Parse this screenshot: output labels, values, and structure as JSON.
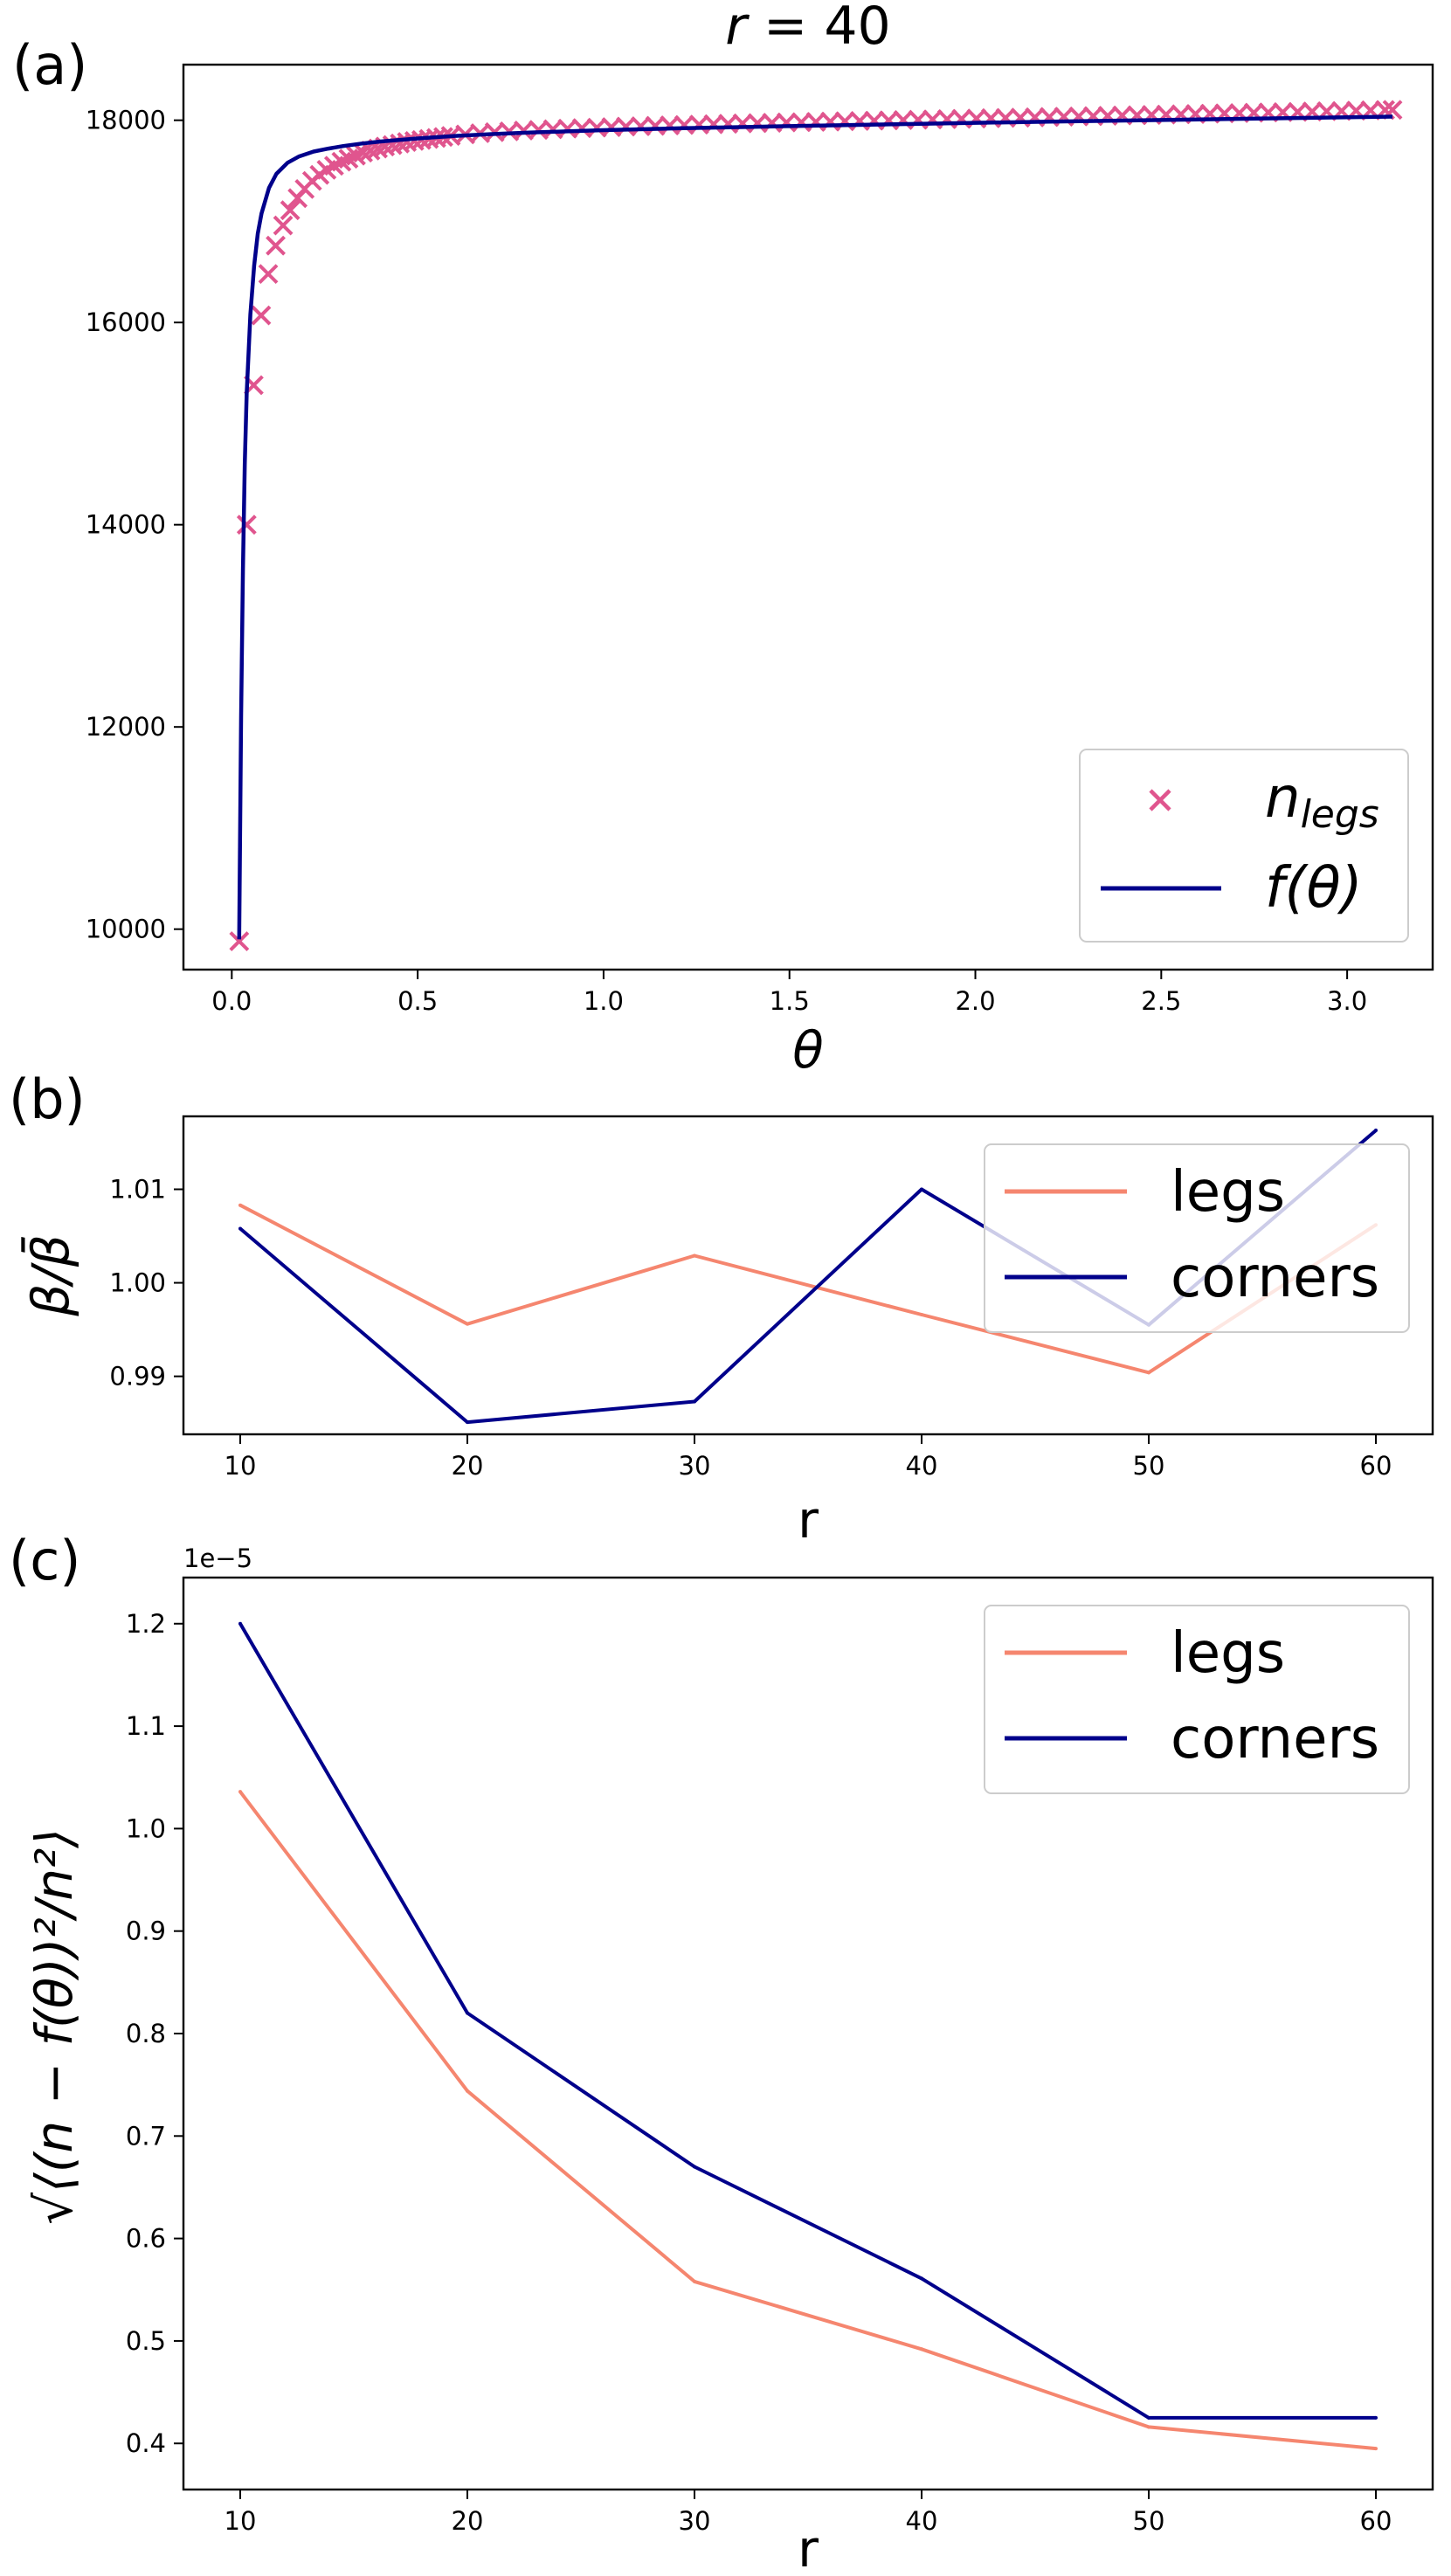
{
  "chart_data": [
    {
      "panel_label": "(a)",
      "type": "scatter",
      "title_var": "r",
      "title_eq": " = ",
      "title_val": "40",
      "xlabel": "θ",
      "ylabel": "",
      "xlim": [
        -0.13,
        3.23
      ],
      "ylim": [
        9600,
        18550
      ],
      "xticks": [
        0.0,
        0.5,
        1.0,
        1.5,
        2.0,
        2.5,
        3.0
      ],
      "xtick_labels": [
        "0.0",
        "0.5",
        "1.0",
        "1.5",
        "2.0",
        "2.5",
        "3.0"
      ],
      "yticks": [
        10000,
        12000,
        14000,
        16000,
        18000
      ],
      "ytick_labels": [
        "10000",
        "12000",
        "14000",
        "16000",
        "18000"
      ],
      "legend_position": "lower-right",
      "series": [
        {
          "name_main": "n",
          "name_sub": "legs",
          "kind": "marker-x",
          "color": "#e0558e",
          "x": [
            0.02,
            0.04,
            0.059,
            0.079,
            0.098,
            0.118,
            0.138,
            0.157,
            0.177,
            0.196,
            0.216,
            0.236,
            0.255,
            0.275,
            0.295,
            0.314,
            0.334,
            0.353,
            0.373,
            0.393,
            0.412,
            0.432,
            0.452,
            0.471,
            0.491,
            0.51,
            0.53,
            0.55,
            0.569,
            0.589,
            0.628,
            0.668,
            0.707,
            0.746,
            0.785,
            0.825,
            0.864,
            0.903,
            0.942,
            0.982,
            1.021,
            1.06,
            1.1,
            1.139,
            1.178,
            1.217,
            1.257,
            1.296,
            1.335,
            1.374,
            1.414,
            1.453,
            1.492,
            1.532,
            1.571,
            1.61,
            1.649,
            1.689,
            1.728,
            1.767,
            1.806,
            1.846,
            1.885,
            1.924,
            1.963,
            2.003,
            2.042,
            2.081,
            2.121,
            2.16,
            2.199,
            2.238,
            2.278,
            2.317,
            2.356,
            2.395,
            2.435,
            2.474,
            2.513,
            2.553,
            2.592,
            2.631,
            2.67,
            2.71,
            2.749,
            2.788,
            2.827,
            2.867,
            2.906,
            2.945,
            2.985,
            3.024,
            3.063,
            3.102,
            3.122
          ],
          "y": [
            9880,
            14000,
            15380,
            16070,
            16480,
            16760,
            16960,
            17110,
            17230,
            17320,
            17400,
            17460,
            17510,
            17550,
            17590,
            17620,
            17650,
            17680,
            17700,
            17720,
            17740,
            17755,
            17770,
            17785,
            17795,
            17805,
            17815,
            17825,
            17835,
            17845,
            17860,
            17872,
            17882,
            17890,
            17898,
            17905,
            17911,
            17917,
            17922,
            17927,
            17932,
            17937,
            17941,
            17945,
            17949,
            17953,
            17957,
            17961,
            17965,
            17969,
            17972,
            17975,
            17978,
            17981,
            17984,
            17987,
            17990,
            17993,
            17996,
            17999,
            18002,
            18005,
            18008,
            18011,
            18014,
            18017,
            18020,
            18023,
            18026,
            18029,
            18032,
            18035,
            18038,
            18041,
            18044,
            18047,
            18050,
            18053,
            18056,
            18059,
            18062,
            18065,
            18068,
            18071,
            18074,
            18077,
            18080,
            18083,
            18086,
            18089,
            18092,
            18095,
            18098,
            18101,
            18103
          ]
        },
        {
          "name_main": "f",
          "name_sub": "",
          "name_rest": "(θ)",
          "kind": "line",
          "color": "#00008b",
          "x": [
            0.02,
            0.025,
            0.03,
            0.035,
            0.04,
            0.05,
            0.06,
            0.07,
            0.08,
            0.1,
            0.12,
            0.15,
            0.18,
            0.22,
            0.26,
            0.3,
            0.35,
            0.4,
            0.45,
            0.5,
            0.6,
            0.7,
            0.8,
            0.9,
            1.0,
            1.2,
            1.4,
            1.6,
            1.8,
            2.0,
            2.2,
            2.4,
            2.6,
            2.8,
            3.0,
            3.122
          ],
          "y": [
            9900,
            12100,
            13560,
            14600,
            15300,
            16080,
            16560,
            16880,
            17080,
            17330,
            17470,
            17580,
            17640,
            17690,
            17720,
            17745,
            17770,
            17790,
            17805,
            17820,
            17845,
            17863,
            17878,
            17890,
            17902,
            17920,
            17935,
            17949,
            17962,
            17975,
            17986,
            17997,
            18008,
            18019,
            18030,
            18036
          ]
        }
      ]
    },
    {
      "panel_label": "(b)",
      "type": "line",
      "xlabel": "r",
      "ylabel": "β/β̄",
      "xlim": [
        7.5,
        62.5
      ],
      "ylim": [
        0.9838,
        1.0178
      ],
      "xticks": [
        10,
        20,
        30,
        40,
        50,
        60
      ],
      "xtick_labels": [
        "10",
        "20",
        "30",
        "40",
        "50",
        "60"
      ],
      "yticks": [
        0.99,
        1.0,
        1.01
      ],
      "ytick_labels": [
        "0.99",
        "1.00",
        "1.01"
      ],
      "legend_position": "upper-right",
      "categories": [
        10,
        20,
        30,
        40,
        50,
        60
      ],
      "series": [
        {
          "name": "legs",
          "color": "#f5866f",
          "values": [
            1.0083,
            0.9956,
            1.0029,
            0.9966,
            0.9904,
            1.0062
          ]
        },
        {
          "name": "corners",
          "color": "#00008b",
          "values": [
            1.0058,
            0.9851,
            0.9873,
            1.01,
            0.9955,
            1.0163
          ]
        }
      ]
    },
    {
      "panel_label": "(c)",
      "type": "line",
      "xlabel": "r",
      "ylabel": "√⟨(n − f(θ))²/n²⟩",
      "offset_text": "1e−5",
      "xlim": [
        7.5,
        62.5
      ],
      "ylim": [
        0.355,
        1.245
      ],
      "xticks": [
        10,
        20,
        30,
        40,
        50,
        60
      ],
      "xtick_labels": [
        "10",
        "20",
        "30",
        "40",
        "50",
        "60"
      ],
      "yticks": [
        0.4,
        0.5,
        0.6,
        0.7,
        0.8,
        0.9,
        1.0,
        1.1,
        1.2
      ],
      "ytick_labels": [
        "0.4",
        "0.5",
        "0.6",
        "0.7",
        "0.8",
        "0.9",
        "1.0",
        "1.1",
        "1.2"
      ],
      "legend_position": "upper-right",
      "categories": [
        10,
        20,
        30,
        40,
        50,
        60
      ],
      "series": [
        {
          "name": "legs",
          "color": "#f5866f",
          "values": [
            1.036,
            0.744,
            0.558,
            0.492,
            0.416,
            0.395
          ]
        },
        {
          "name": "corners",
          "color": "#00008b",
          "values": [
            1.2,
            0.82,
            0.67,
            0.561,
            0.425,
            0.425
          ]
        }
      ]
    }
  ]
}
